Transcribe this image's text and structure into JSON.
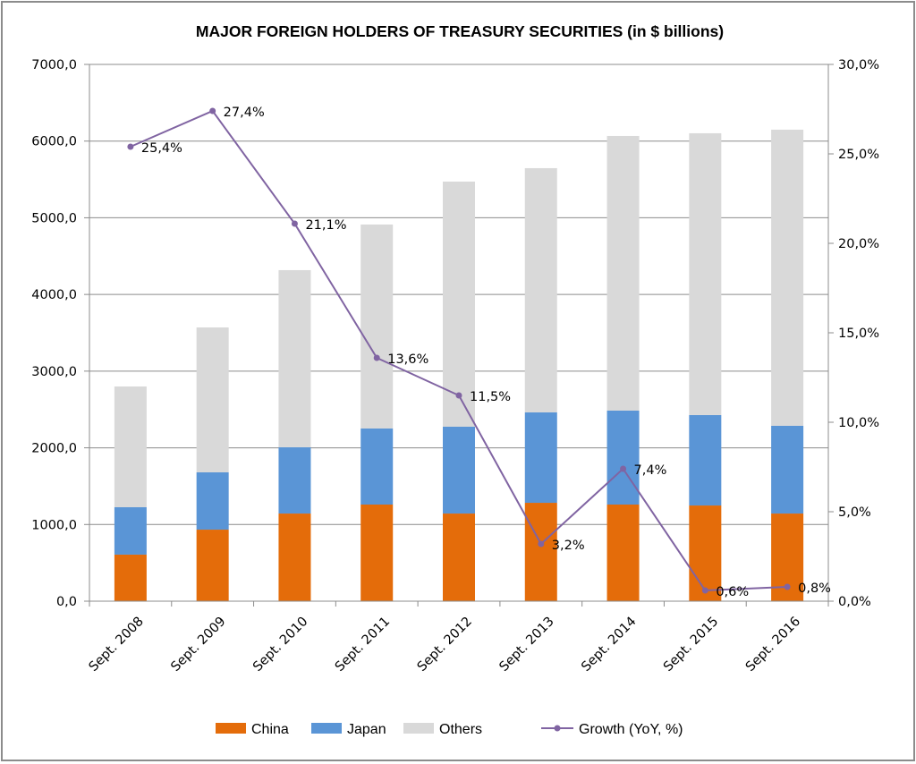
{
  "chart_data": {
    "type": "bar",
    "stacked": true,
    "title": "MAJOR FOREIGN HOLDERS OF TREASURY SECURITIES (in $ billions)",
    "xlabel": "",
    "ylabel": "",
    "categories": [
      "Sept. 2008",
      "Sept. 2009",
      "Sept. 2010",
      "Sept. 2011",
      "Sept. 2012",
      "Sept. 2013",
      "Sept. 2014",
      "Sept. 2015",
      "Sept. 2016"
    ],
    "series": [
      {
        "name": "China",
        "color": "#E46C0A",
        "values": [
          607,
          933,
          1143,
          1260,
          1143,
          1283,
          1260,
          1248,
          1143
        ]
      },
      {
        "name": "Japan",
        "color": "#5A95D6",
        "values": [
          618,
          747,
          864,
          992,
          1132,
          1179,
          1225,
          1179,
          1144
        ]
      },
      {
        "name": "Others",
        "color": "#D9D9D9",
        "values": [
          1575,
          1890,
          2310,
          2660,
          3197,
          3185,
          3582,
          3675,
          3862
        ]
      }
    ],
    "line_series": {
      "name": "Growth (YoY, %)",
      "color": "#8064A2",
      "axis": "right",
      "values": [
        25.4,
        27.4,
        21.1,
        13.6,
        11.5,
        3.2,
        7.4,
        0.6,
        0.8
      ],
      "labels": [
        "25,4%",
        "27,4%",
        "21,1%",
        "13,6%",
        "11,5%",
        "3,2%",
        "7,4%",
        "0,6%",
        "0,8%"
      ]
    },
    "ylim": [
      0,
      7000
    ],
    "y2lim": [
      0,
      30
    ],
    "yticks": [
      "0,0",
      "1000,0",
      "2000,0",
      "3000,0",
      "4000,0",
      "5000,0",
      "6000,0",
      "7000,0"
    ],
    "y2ticks": [
      "0,0%",
      "5,0%",
      "10,0%",
      "15,0%",
      "20,0%",
      "25,0%",
      "30,0%"
    ],
    "grid": true,
    "legend_position": "bottom",
    "legend": [
      "China",
      "Japan",
      "Others",
      "Growth (YoY, %)"
    ]
  }
}
